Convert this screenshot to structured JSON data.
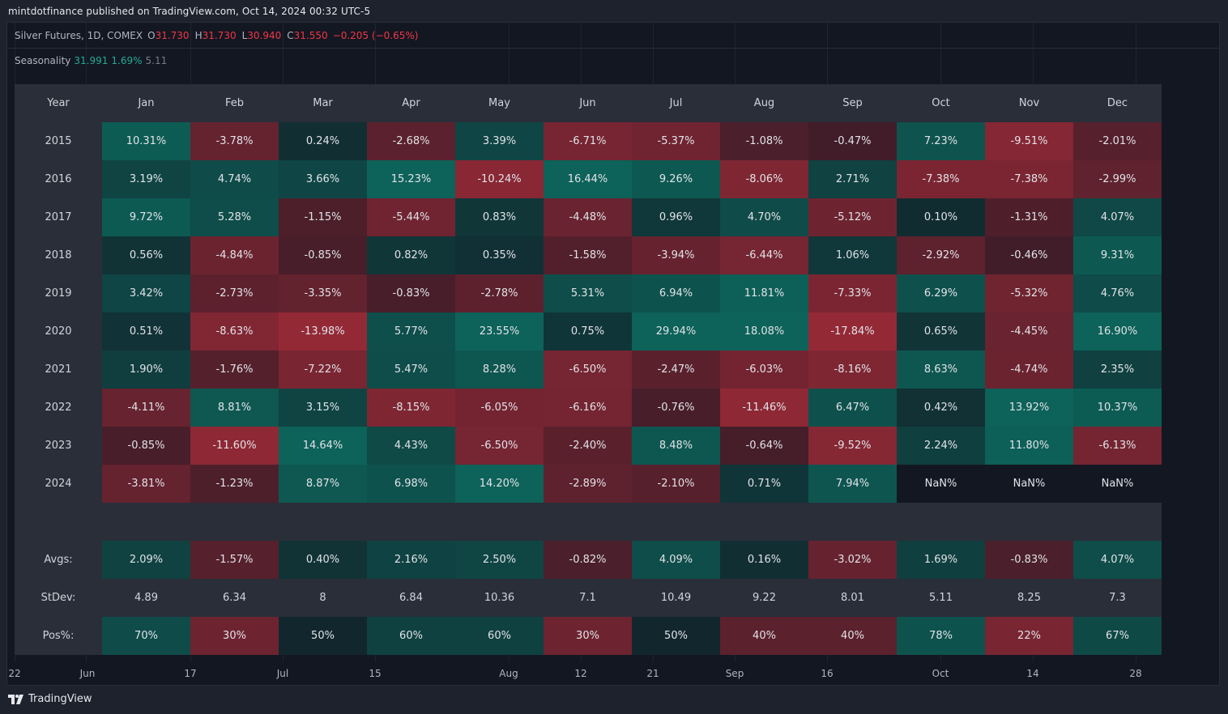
{
  "publisher": "mintdotfinance published on TradingView.com, Oct 14, 2024 00:32 UTC-5",
  "series": {
    "name": "Silver Futures, 1D, COMEX",
    "o_label": "O",
    "o": "31.730",
    "h_label": "H",
    "h": "31.730",
    "l_label": "L",
    "l": "30.940",
    "c_label": "C",
    "c": "31.550",
    "change": "−0.205 (−0.65%)"
  },
  "seasonality": {
    "label": "Seasonality",
    "v1": "31.991",
    "v2": "1.69%",
    "v3": "5.11"
  },
  "colors": {
    "up": "#22ab94",
    "down": "#f23645",
    "bg": "#131722",
    "header": "#2a2e39"
  },
  "table": {
    "year_header": "Year",
    "months": [
      "Jan",
      "Feb",
      "Mar",
      "Apr",
      "May",
      "Jun",
      "Jul",
      "Aug",
      "Sep",
      "Oct",
      "Nov",
      "Dec"
    ],
    "rows": [
      {
        "year": "2015",
        "values": [
          "10.31%",
          "-3.78%",
          "0.24%",
          "-2.68%",
          "3.39%",
          "-6.71%",
          "-5.37%",
          "-1.08%",
          "-0.47%",
          "7.23%",
          "-9.51%",
          "-2.01%"
        ]
      },
      {
        "year": "2016",
        "values": [
          "3.19%",
          "4.74%",
          "3.66%",
          "15.23%",
          "-10.24%",
          "16.44%",
          "9.26%",
          "-8.06%",
          "2.71%",
          "-7.38%",
          "-7.38%",
          "-2.99%"
        ]
      },
      {
        "year": "2017",
        "values": [
          "9.72%",
          "5.28%",
          "-1.15%",
          "-5.44%",
          "0.83%",
          "-4.48%",
          "0.96%",
          "4.70%",
          "-5.12%",
          "0.10%",
          "-1.31%",
          "4.07%"
        ]
      },
      {
        "year": "2018",
        "values": [
          "0.56%",
          "-4.84%",
          "-0.85%",
          "0.82%",
          "0.35%",
          "-1.58%",
          "-3.94%",
          "-6.44%",
          "1.06%",
          "-2.92%",
          "-0.46%",
          "9.31%"
        ]
      },
      {
        "year": "2019",
        "values": [
          "3.42%",
          "-2.73%",
          "-3.35%",
          "-0.83%",
          "-2.78%",
          "5.31%",
          "6.94%",
          "11.81%",
          "-7.33%",
          "6.29%",
          "-5.32%",
          "4.76%"
        ]
      },
      {
        "year": "2020",
        "values": [
          "0.51%",
          "-8.63%",
          "-13.98%",
          "5.77%",
          "23.55%",
          "0.75%",
          "29.94%",
          "18.08%",
          "-17.84%",
          "0.65%",
          "-4.45%",
          "16.90%"
        ]
      },
      {
        "year": "2021",
        "values": [
          "1.90%",
          "-1.76%",
          "-7.22%",
          "5.47%",
          "8.28%",
          "-6.50%",
          "-2.47%",
          "-6.03%",
          "-8.16%",
          "8.63%",
          "-4.74%",
          "2.35%"
        ]
      },
      {
        "year": "2022",
        "values": [
          "-4.11%",
          "8.81%",
          "3.15%",
          "-8.15%",
          "-6.05%",
          "-6.16%",
          "-0.76%",
          "-11.46%",
          "6.47%",
          "0.42%",
          "13.92%",
          "10.37%"
        ]
      },
      {
        "year": "2023",
        "values": [
          "-0.85%",
          "-11.60%",
          "14.64%",
          "4.43%",
          "-6.50%",
          "-2.40%",
          "8.48%",
          "-0.64%",
          "-9.52%",
          "2.24%",
          "11.80%",
          "-6.13%"
        ]
      },
      {
        "year": "2024",
        "values": [
          "-3.81%",
          "-1.23%",
          "8.87%",
          "6.98%",
          "14.20%",
          "-2.89%",
          "-2.10%",
          "0.71%",
          "7.94%",
          "NaN%",
          "NaN%",
          "NaN%"
        ]
      }
    ],
    "avgs_label": "Avgs:",
    "avgs": [
      "2.09%",
      "-1.57%",
      "0.40%",
      "2.16%",
      "2.50%",
      "-0.82%",
      "4.09%",
      "0.16%",
      "-3.02%",
      "1.69%",
      "-0.83%",
      "4.07%"
    ],
    "stdev_label": "StDev:",
    "stdev": [
      "4.89",
      "6.34",
      "8",
      "6.84",
      "10.36",
      "7.1",
      "10.49",
      "9.22",
      "8.01",
      "5.11",
      "8.25",
      "7.3"
    ],
    "pos_label": "Pos%:",
    "pos": [
      "70%",
      "30%",
      "50%",
      "60%",
      "60%",
      "30%",
      "50%",
      "40%",
      "40%",
      "78%",
      "22%",
      "67%"
    ]
  },
  "x_axis": [
    "22",
    "Jun",
    "17",
    "Jul",
    "15",
    "Aug",
    "12",
    "21",
    "Sep",
    "16",
    "Oct",
    "14",
    "28"
  ],
  "brand": "TradingView"
}
